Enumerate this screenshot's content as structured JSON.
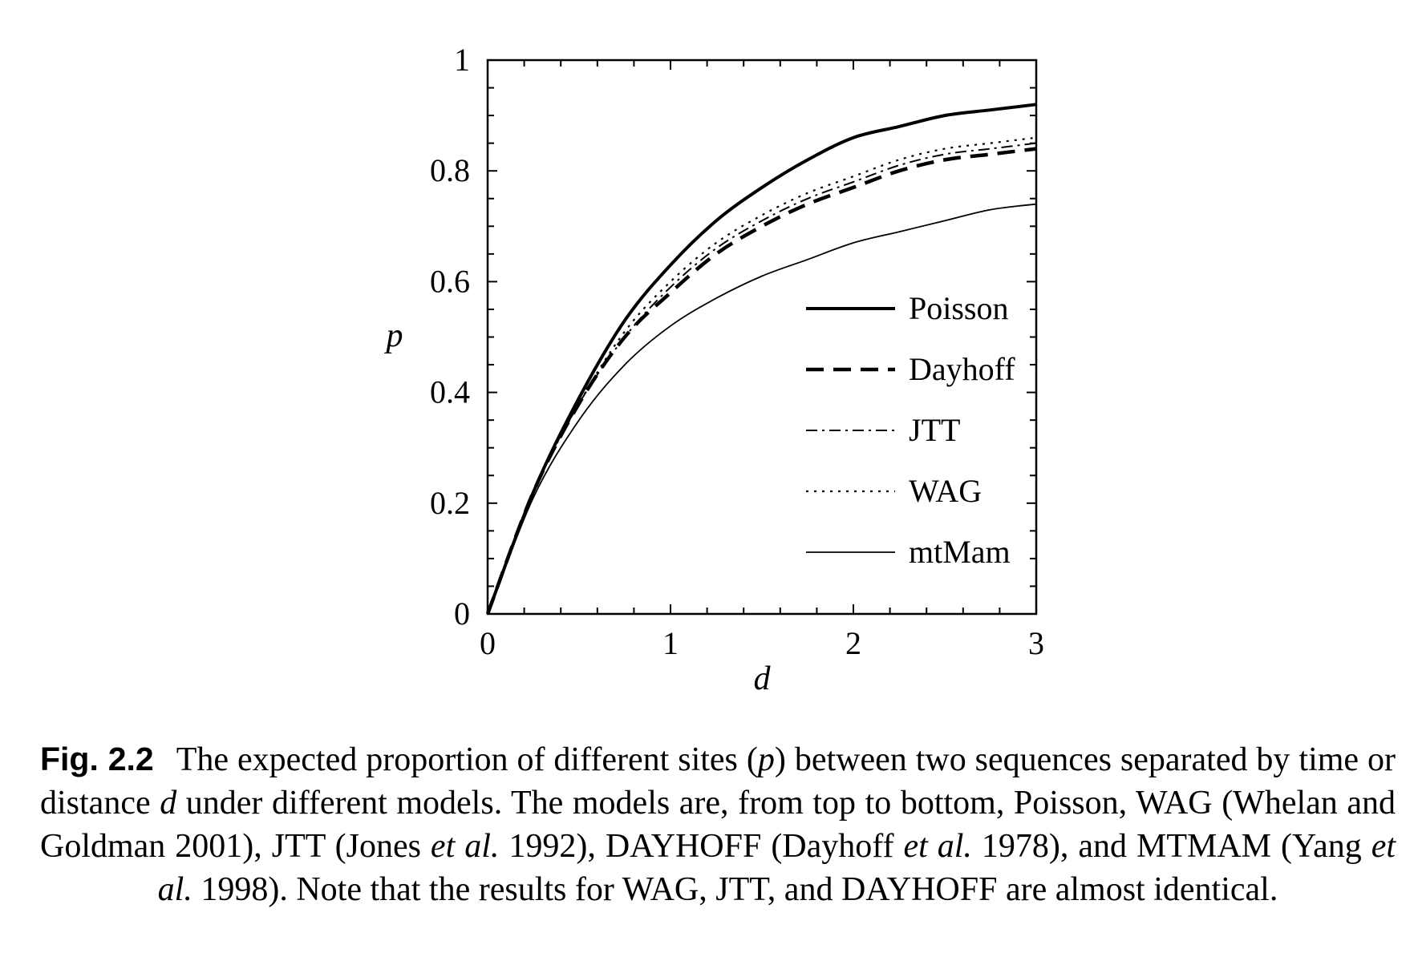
{
  "chart_data": {
    "type": "line",
    "xlabel": "d",
    "ylabel": "p",
    "xlim": [
      0,
      3
    ],
    "ylim": [
      0,
      1
    ],
    "xticks": [
      "0",
      "1",
      "2",
      "3"
    ],
    "yticks": [
      "0",
      "0.2",
      "0.4",
      "0.6",
      "0.8",
      "1"
    ],
    "grid": false,
    "legend_position": "right, inside plot",
    "x": [
      0,
      0.25,
      0.5,
      0.75,
      1,
      1.25,
      1.5,
      1.75,
      2,
      2.25,
      2.5,
      2.75,
      3
    ],
    "series": [
      {
        "name": "Poisson",
        "style": "solid-thick",
        "values": [
          0,
          0.22,
          0.39,
          0.53,
          0.63,
          0.71,
          0.77,
          0.82,
          0.86,
          0.88,
          0.9,
          0.91,
          0.92
        ]
      },
      {
        "name": "Dayhoff",
        "style": "dashed-thick",
        "values": [
          0,
          0.22,
          0.38,
          0.5,
          0.58,
          0.65,
          0.7,
          0.74,
          0.77,
          0.8,
          0.82,
          0.83,
          0.84
        ]
      },
      {
        "name": "JTT",
        "style": "dash-dot",
        "values": [
          0,
          0.22,
          0.38,
          0.5,
          0.59,
          0.66,
          0.71,
          0.75,
          0.78,
          0.81,
          0.83,
          0.84,
          0.85
        ]
      },
      {
        "name": "WAG",
        "style": "dotted",
        "values": [
          0,
          0.22,
          0.38,
          0.51,
          0.6,
          0.67,
          0.72,
          0.76,
          0.79,
          0.82,
          0.84,
          0.85,
          0.86
        ]
      },
      {
        "name": "mtMam",
        "style": "solid-thin",
        "values": [
          0,
          0.21,
          0.35,
          0.45,
          0.52,
          0.57,
          0.61,
          0.64,
          0.67,
          0.69,
          0.71,
          0.73,
          0.74
        ]
      }
    ]
  },
  "caption": {
    "label": "Fig. 2.2",
    "part1": "The expected proportion of different sites (",
    "var_p": "p",
    "part2": ") between two sequences separated by time or distance ",
    "var_d": "d",
    "part3": " under different models. The models are, from top to bottom, Poisson, WAG (Whelan and Goldman 2001), JTT (Jones ",
    "etal1": "et al.",
    "part4": " 1992), DAYHOFF (Dayhoff ",
    "etal2": "et al.",
    "part5": " 1978), and MTMAM (Yang ",
    "etal3": "et al.",
    "part6": " 1998). Note that the results for WAG, JTT, and DAYHOFF are almost identical."
  }
}
